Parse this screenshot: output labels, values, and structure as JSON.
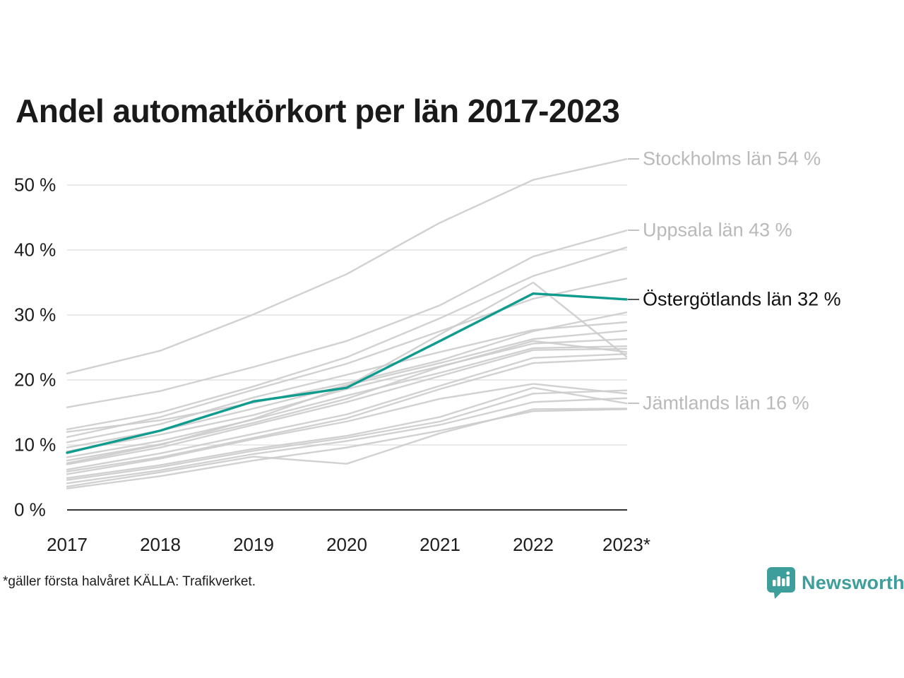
{
  "title": "Andel automatkörkort per län 2017-2023",
  "footer": {
    "note": "*gäller första halvåret KÄLLA: Trafikverket.",
    "brand": "Newsworthy"
  },
  "colors": {
    "highlight": "#0f9b8d",
    "muted_line": "#cccccc",
    "gridline": "#e4e4e4",
    "axis": "#333333",
    "label_muted": "#b9b9b9",
    "label_dark": "#111111",
    "connector_muted": "#c3c3c3",
    "connector_dark": "#555555",
    "brand_teal": "#3d9e9b"
  },
  "chart_data": {
    "type": "line",
    "x": [
      2017,
      2018,
      2019,
      2020,
      2021,
      2022,
      2023
    ],
    "x_tick_labels": [
      "2017",
      "2018",
      "2019",
      "2020",
      "2021",
      "2022",
      "2023*"
    ],
    "y_ticks": [
      {
        "value": 0,
        "label": "0 %"
      },
      {
        "value": 10,
        "label": "10 %"
      },
      {
        "value": 20,
        "label": "20 %"
      },
      {
        "value": 30,
        "label": "30 %"
      },
      {
        "value": 40,
        "label": "40 %"
      },
      {
        "value": 50,
        "label": "50 %"
      }
    ],
    "ylim": [
      0,
      57
    ],
    "grid": "horizontal",
    "legend_position": "right-annotations",
    "series": [
      {
        "label": "Stockholms län 54 %",
        "highlight": false,
        "values": [
          21.0,
          24.5,
          30.1,
          36.3,
          44.2,
          50.8,
          54.0
        ]
      },
      {
        "label": "Uppsala län 43 %",
        "highlight": false,
        "values": [
          15.8,
          18.3,
          22.0,
          26.0,
          31.5,
          39.0,
          43.0
        ]
      },
      {
        "label": null,
        "highlight": false,
        "values": [
          12.4,
          15.0,
          19.0,
          23.5,
          29.5,
          36.0,
          40.4
        ]
      },
      {
        "label": null,
        "highlight": false,
        "values": [
          11.2,
          14.3,
          18.5,
          22.5,
          27.5,
          32.5,
          35.6
        ]
      },
      {
        "label": null,
        "highlight": false,
        "values": [
          7.2,
          10.0,
          14.0,
          19.0,
          27.0,
          35.0,
          23.6
        ]
      },
      {
        "label": null,
        "highlight": false,
        "values": [
          12.0,
          13.8,
          16.5,
          19.5,
          23.0,
          27.5,
          30.4
        ]
      },
      {
        "label": null,
        "highlight": false,
        "values": [
          10.4,
          13.2,
          17.3,
          20.8,
          24.3,
          27.7,
          28.9
        ]
      },
      {
        "label": null,
        "highlight": false,
        "values": [
          9.6,
          12.2,
          15.6,
          19.2,
          22.6,
          26.3,
          27.6
        ]
      },
      {
        "label": null,
        "highlight": false,
        "values": [
          9.0,
          11.6,
          14.6,
          18.6,
          22.1,
          25.6,
          26.3
        ]
      },
      {
        "label": null,
        "highlight": false,
        "values": [
          8.1,
          10.6,
          13.9,
          17.6,
          21.1,
          24.9,
          25.2
        ]
      },
      {
        "label": null,
        "highlight": false,
        "values": [
          7.6,
          10.1,
          13.4,
          17.1,
          22.0,
          26.0,
          24.3
        ]
      },
      {
        "label": null,
        "highlight": false,
        "values": [
          7.0,
          9.6,
          13.1,
          16.6,
          20.6,
          24.6,
          24.8
        ]
      },
      {
        "label": null,
        "highlight": false,
        "values": [
          6.2,
          8.7,
          11.7,
          14.7,
          19.1,
          23.4,
          24.0
        ]
      },
      {
        "label": null,
        "highlight": false,
        "values": [
          5.9,
          8.1,
          11.1,
          14.1,
          18.6,
          22.6,
          23.3
        ]
      },
      {
        "label": null,
        "highlight": false,
        "values": [
          5.5,
          7.9,
          10.9,
          13.6,
          17.1,
          19.4,
          17.9
        ]
      },
      {
        "label": null,
        "highlight": false,
        "values": [
          4.6,
          6.6,
          9.1,
          11.1,
          13.6,
          17.9,
          18.4
        ]
      },
      {
        "label": null,
        "highlight": false,
        "values": [
          4.1,
          6.1,
          8.6,
          10.6,
          13.1,
          16.6,
          17.2
        ]
      },
      {
        "label": "Jämtlands län 16 %",
        "highlight": false,
        "values": [
          4.9,
          6.9,
          9.4,
          11.4,
          14.3,
          18.8,
          16.4
        ]
      },
      {
        "label": null,
        "highlight": false,
        "values": [
          3.6,
          5.8,
          8.2,
          7.1,
          11.8,
          15.5,
          15.6
        ]
      },
      {
        "label": null,
        "highlight": false,
        "values": [
          3.3,
          5.2,
          7.6,
          9.6,
          12.2,
          15.2,
          15.5
        ]
      },
      {
        "label": "Östergötlands län 32 %",
        "highlight": true,
        "values": [
          8.8,
          12.2,
          16.7,
          18.8,
          26.0,
          33.3,
          32.4
        ]
      }
    ]
  }
}
